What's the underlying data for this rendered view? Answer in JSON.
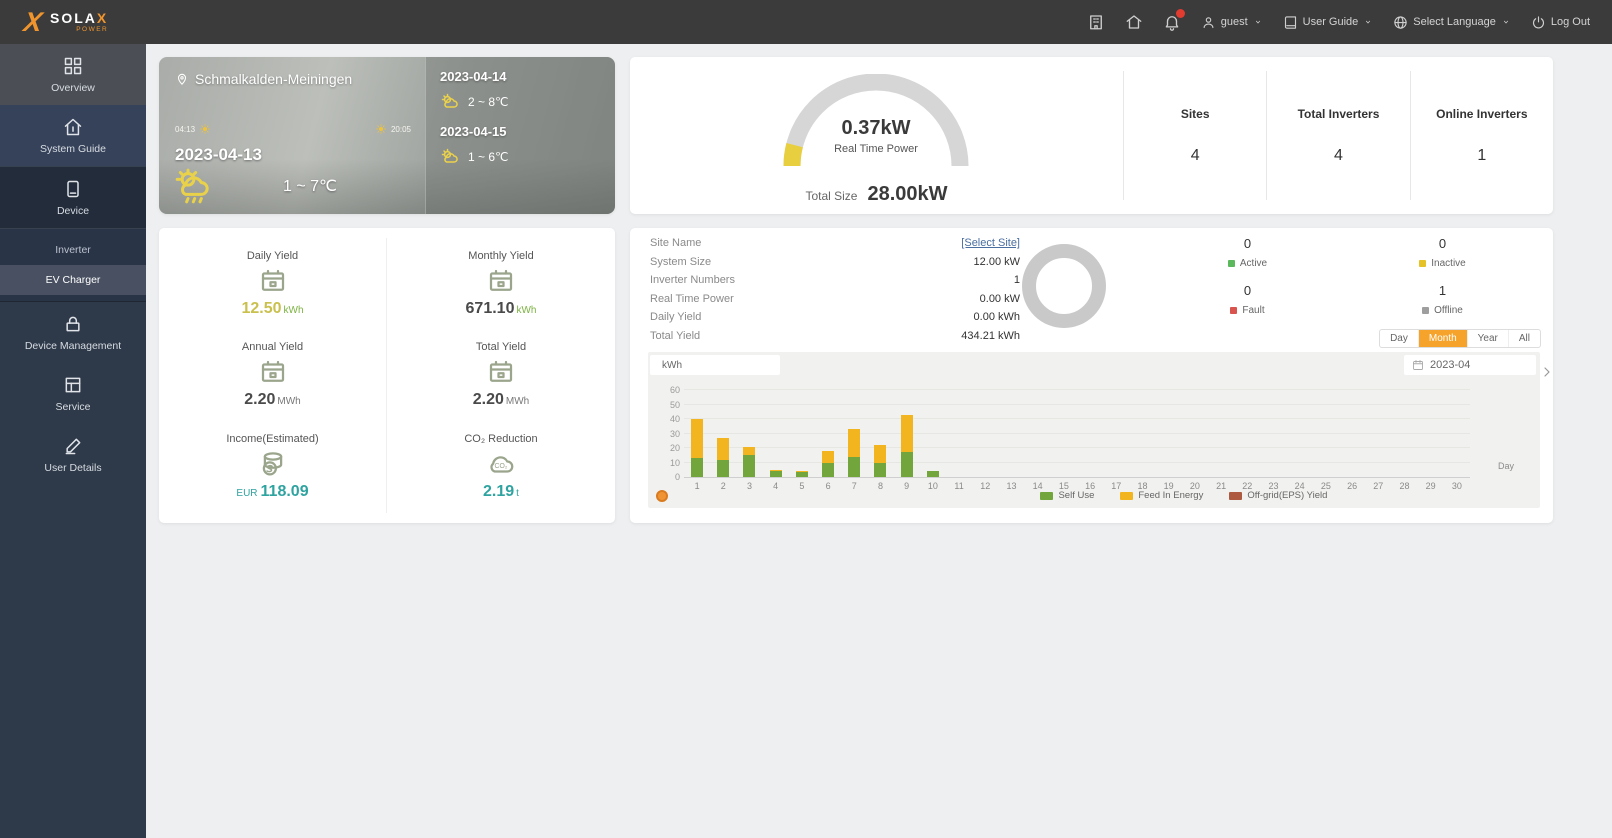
{
  "topbar": {
    "brand": {
      "x": "X",
      "text_main": "SOLA",
      "text_x": "X",
      "sub": "POWER"
    },
    "status_icons": [
      "building-icon",
      "home-icon",
      "notifications-icon"
    ],
    "notification_badge": true,
    "menus": [
      {
        "icon": "person-icon",
        "label": "guest",
        "caret": true
      },
      {
        "icon": "guide-icon",
        "label": "User Guide",
        "caret": true
      },
      {
        "icon": "globe-icon",
        "label": "Select Language",
        "caret": true
      },
      {
        "icon": "power-icon",
        "label": "Log Out",
        "caret": false
      }
    ]
  },
  "sidebar": {
    "items": [
      {
        "label": "Overview",
        "icon": "overview-icon",
        "variant": "current"
      },
      {
        "label": "System Guide",
        "icon": "system-icon",
        "variant": "plain"
      },
      {
        "label": "Device",
        "icon": "device-icon",
        "variant": "open"
      },
      {
        "label": "Inverter",
        "sub": true
      },
      {
        "label": "EV Charger",
        "sub": true,
        "variant": "highlight"
      },
      {
        "label": "Device Management",
        "icon": "device-management-icon"
      },
      {
        "label": "Service",
        "icon": "service-icon"
      },
      {
        "label": "User Details",
        "icon": "user-details-icon"
      }
    ]
  },
  "weather": {
    "location": "Schmalkalden-Meiningen",
    "sunrise": "04:13",
    "sunset": "20:05",
    "today": {
      "date": "2023-04-13",
      "temp": "1 ~ 7℃"
    },
    "forecast": [
      {
        "date": "2023-04-14",
        "temp": "2 ~ 8℃"
      },
      {
        "date": "2023-04-15",
        "temp": "1 ~ 6℃"
      }
    ]
  },
  "summary": {
    "real_time_power": "0.37kW",
    "real_time_label": "Real Time Power",
    "total_size_label": "Total Size",
    "total_size": "28.00kW",
    "gauge_colors": {
      "track": "#d6d6d6",
      "value": "#e8cf3f"
    },
    "stats": [
      {
        "label": "Sites",
        "value": "4"
      },
      {
        "label": "Total Inverters",
        "value": "4"
      },
      {
        "label": "Online Inverters",
        "value": "1"
      }
    ]
  },
  "yields": {
    "cells": [
      {
        "label": "Daily Yield",
        "prefix": "",
        "value": "12.50",
        "unit": "kWh",
        "icon": "calendar-yield-icon",
        "value_color": "#c9c04e",
        "unit_color": "#7cb342"
      },
      {
        "label": "Monthly Yield",
        "prefix": "",
        "value": "671.10",
        "unit": "kWh",
        "icon": "calendar-yield-icon",
        "value_color": "#4a4a4a",
        "unit_color": "#7cb342"
      },
      {
        "label": "Annual Yield",
        "prefix": "",
        "value": "2.20",
        "unit": "MWh",
        "icon": "calendar-yield-icon",
        "value_color": "#4a4a4a",
        "unit_color": "#777777"
      },
      {
        "label": "Total Yield",
        "prefix": "",
        "value": "2.20",
        "unit": "MWh",
        "icon": "calendar-yield-icon",
        "value_color": "#4a4a4a",
        "unit_color": "#777777"
      },
      {
        "label": "Income(Estimated)",
        "prefix": "EUR",
        "value": "118.09",
        "unit": "",
        "icon": "income-icon",
        "value_color": "#2fa3a0",
        "unit_color": "#2fa3a0"
      },
      {
        "label": "CO₂ Reduction",
        "prefix": "",
        "value": "2.19",
        "unit": "t",
        "icon": "co2-icon",
        "value_color": "#2fa3a0",
        "unit_color": "#2fa3a0"
      }
    ]
  },
  "site_panel": {
    "rows": [
      {
        "label": "Site Name",
        "value": "[Select Site]",
        "link": true
      },
      {
        "label": "System Size",
        "value": "12.00 kW"
      },
      {
        "label": "Inverter Numbers",
        "value": "1"
      },
      {
        "label": "Real Time Power",
        "value": "0.00 kW"
      },
      {
        "label": "Daily Yield",
        "value": "0.00 kWh"
      },
      {
        "label": "Total Yield",
        "value": "434.21 kWh"
      }
    ],
    "status": [
      {
        "label": "Active",
        "value": "0",
        "color": "#5cb85c"
      },
      {
        "label": "Inactive",
        "value": "0",
        "color": "#e6c229"
      },
      {
        "label": "Fault",
        "value": "0",
        "color": "#d9534f"
      },
      {
        "label": "Offline",
        "value": "1",
        "color": "#9e9e9e"
      }
    ],
    "donut_color": "#c9c9c9"
  },
  "chart_controls": {
    "range_tabs": [
      {
        "label": "Day",
        "active": false
      },
      {
        "label": "Month",
        "active": true
      },
      {
        "label": "Year",
        "active": false
      },
      {
        "label": "All",
        "active": false
      }
    ],
    "active_tab_color": "#f5a32a",
    "date": "2023-04",
    "unit_tab": "kWh"
  },
  "chart_data": {
    "type": "bar",
    "stacked": true,
    "title": "",
    "xlabel": "Day",
    "ylabel": "kWh",
    "grid": true,
    "legend_position": "bottom",
    "x": [
      1,
      2,
      3,
      4,
      5,
      6,
      7,
      8,
      9,
      10,
      11,
      12,
      13,
      14,
      15,
      16,
      17,
      18,
      19,
      20,
      21,
      22,
      23,
      24,
      25,
      26,
      27,
      28,
      29,
      30
    ],
    "ylim": [
      0,
      60
    ],
    "yticks": [
      0,
      10,
      20,
      30,
      40,
      50,
      60
    ],
    "series": [
      {
        "name": "Self Use",
        "color": "#72a53c",
        "values": [
          13,
          12,
          15,
          4,
          3.5,
          10,
          14,
          10,
          17,
          4,
          0,
          0,
          0,
          0,
          0,
          0,
          0,
          0,
          0,
          0,
          0,
          0,
          0,
          0,
          0,
          0,
          0,
          0,
          0,
          0
        ]
      },
      {
        "name": "Feed In Energy",
        "color": "#f2b51f",
        "values": [
          27,
          15,
          6,
          1,
          0.8,
          8,
          19,
          12,
          26,
          0,
          0,
          0,
          0,
          0,
          0,
          0,
          0,
          0,
          0,
          0,
          0,
          0,
          0,
          0,
          0,
          0,
          0,
          0,
          0,
          0
        ]
      },
      {
        "name": "Off-grid(EPS) Yield",
        "color": "#ad5a41",
        "values": [
          0,
          0,
          0,
          0,
          0,
          0,
          0,
          0,
          0,
          0,
          0,
          0,
          0,
          0,
          0,
          0,
          0,
          0,
          0,
          0,
          0,
          0,
          0,
          0,
          0,
          0,
          0,
          0,
          0,
          0
        ]
      }
    ]
  }
}
